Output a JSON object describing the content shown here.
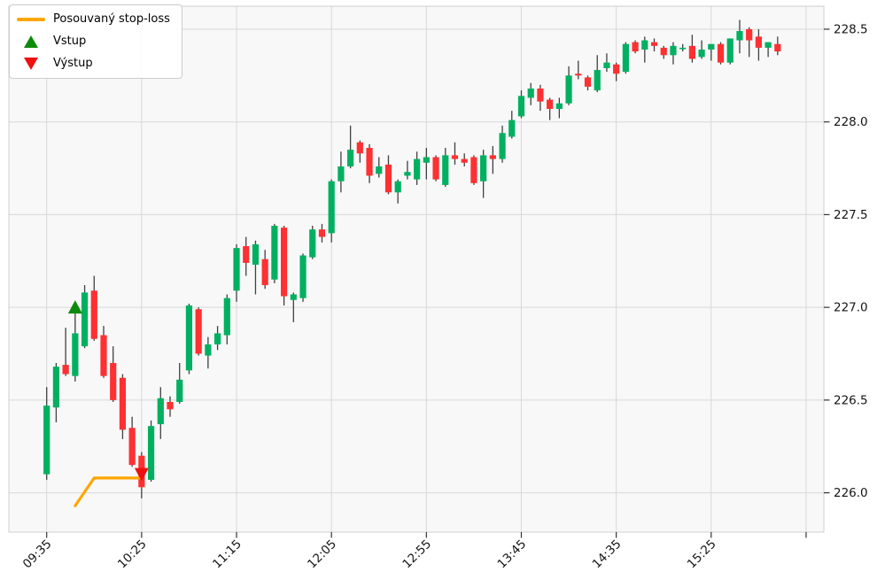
{
  "chart_data": {
    "type": "candlestick",
    "title": "",
    "xlabel": "",
    "ylabel": "",
    "grid": true,
    "legend_position": "upper-left",
    "interval_minutes": 5,
    "y_ticks": [
      226.0,
      226.5,
      227.0,
      227.5,
      228.0,
      228.5
    ],
    "ylim": [
      225.788,
      228.624
    ],
    "x_ticks": [
      {
        "i": 0,
        "label": "09:35"
      },
      {
        "i": 10,
        "label": "10:25"
      },
      {
        "i": 20,
        "label": "11:15"
      },
      {
        "i": 30,
        "label": "12:05"
      },
      {
        "i": 40,
        "label": "12:55"
      },
      {
        "i": 50,
        "label": "13:45"
      },
      {
        "i": 60,
        "label": "14:35"
      },
      {
        "i": 70,
        "label": "15:25"
      },
      {
        "i": 80,
        "label": ""
      }
    ],
    "candles": [
      [
        "09:35",
        226.1,
        226.57,
        226.07,
        226.47
      ],
      [
        "09:40",
        226.46,
        226.7,
        226.38,
        226.68
      ],
      [
        "09:45",
        226.69,
        226.89,
        226.63,
        226.64
      ],
      [
        "09:50",
        226.63,
        227.02,
        226.6,
        226.86
      ],
      [
        "09:55",
        226.79,
        227.12,
        226.78,
        227.08
      ],
      [
        "10:00",
        227.09,
        227.17,
        226.82,
        226.83
      ],
      [
        "10:05",
        226.85,
        226.9,
        226.62,
        226.63
      ],
      [
        "10:10",
        226.7,
        226.79,
        226.49,
        226.5
      ],
      [
        "10:15",
        226.62,
        226.64,
        226.29,
        226.34
      ],
      [
        "10:20",
        226.35,
        226.41,
        226.14,
        226.15
      ],
      [
        "10:25",
        226.2,
        226.22,
        225.97,
        226.03
      ],
      [
        "10:30",
        226.07,
        226.39,
        226.06,
        226.36
      ],
      [
        "10:35",
        226.37,
        226.57,
        226.29,
        226.51
      ],
      [
        "10:40",
        226.49,
        226.52,
        226.41,
        226.45
      ],
      [
        "10:45",
        226.49,
        226.7,
        226.48,
        226.61
      ],
      [
        "10:50",
        226.66,
        227.02,
        226.64,
        227.01
      ],
      [
        "10:55",
        226.99,
        227.0,
        226.74,
        226.75
      ],
      [
        "11:00",
        226.74,
        226.84,
        226.67,
        226.8
      ],
      [
        "11:05",
        226.8,
        226.9,
        226.77,
        226.86
      ],
      [
        "11:10",
        226.85,
        227.07,
        226.8,
        227.05
      ],
      [
        "11:15",
        227.09,
        227.34,
        227.03,
        227.32
      ],
      [
        "11:20",
        227.33,
        227.38,
        227.17,
        227.24
      ],
      [
        "11:25",
        227.23,
        227.36,
        227.07,
        227.34
      ],
      [
        "11:30",
        227.26,
        227.31,
        227.1,
        227.12
      ],
      [
        "11:35",
        227.15,
        227.45,
        227.13,
        227.44
      ],
      [
        "11:40",
        227.43,
        227.44,
        227.01,
        227.06
      ],
      [
        "11:45",
        227.04,
        227.08,
        226.92,
        227.07
      ],
      [
        "11:50",
        227.05,
        227.29,
        227.03,
        227.28
      ],
      [
        "11:55",
        227.27,
        227.44,
        227.26,
        227.42
      ],
      [
        "12:00",
        227.42,
        227.45,
        227.35,
        227.38
      ],
      [
        "12:05",
        227.4,
        227.69,
        227.35,
        227.68
      ],
      [
        "12:10",
        227.68,
        227.84,
        227.62,
        227.76
      ],
      [
        "12:15",
        227.76,
        227.98,
        227.75,
        227.85
      ],
      [
        "12:20",
        227.89,
        227.9,
        227.78,
        227.83
      ],
      [
        "12:25",
        227.86,
        227.88,
        227.67,
        227.71
      ],
      [
        "12:30",
        227.72,
        227.81,
        227.7,
        227.76
      ],
      [
        "12:35",
        227.77,
        227.82,
        227.61,
        227.62
      ],
      [
        "12:40",
        227.62,
        227.69,
        227.56,
        227.68
      ],
      [
        "12:45",
        227.71,
        227.79,
        227.69,
        227.73
      ],
      [
        "12:50",
        227.69,
        227.84,
        227.66,
        227.8
      ],
      [
        "12:55",
        227.78,
        227.86,
        227.69,
        227.81
      ],
      [
        "13:00",
        227.81,
        227.82,
        227.68,
        227.69
      ],
      [
        "13:05",
        227.66,
        227.86,
        227.65,
        227.82
      ],
      [
        "13:10",
        227.82,
        227.89,
        227.77,
        227.8
      ],
      [
        "13:15",
        227.8,
        227.83,
        227.76,
        227.78
      ],
      [
        "13:20",
        227.81,
        227.82,
        227.66,
        227.67
      ],
      [
        "13:25",
        227.68,
        227.85,
        227.59,
        227.82
      ],
      [
        "13:30",
        227.82,
        227.87,
        227.72,
        227.8
      ],
      [
        "13:35",
        227.8,
        227.98,
        227.78,
        227.94
      ],
      [
        "13:40",
        227.92,
        228.06,
        227.91,
        228.01
      ],
      [
        "13:45",
        228.03,
        228.17,
        228.02,
        228.14
      ],
      [
        "13:50",
        228.13,
        228.21,
        228.09,
        228.18
      ],
      [
        "13:55",
        228.18,
        228.2,
        228.06,
        228.11
      ],
      [
        "14:00",
        228.12,
        228.13,
        228.01,
        228.07
      ],
      [
        "14:05",
        228.07,
        228.13,
        228.02,
        228.1
      ],
      [
        "14:10",
        228.1,
        228.3,
        228.09,
        228.25
      ],
      [
        "14:15",
        228.26,
        228.33,
        228.23,
        228.25
      ],
      [
        "14:20",
        228.24,
        228.25,
        228.17,
        228.19
      ],
      [
        "14:25",
        228.17,
        228.36,
        228.16,
        228.28
      ],
      [
        "14:30",
        228.29,
        228.37,
        228.27,
        228.32
      ],
      [
        "14:35",
        228.31,
        228.32,
        228.22,
        228.26
      ],
      [
        "14:40",
        228.27,
        228.43,
        228.26,
        228.42
      ],
      [
        "14:45",
        228.43,
        228.44,
        228.37,
        228.38
      ],
      [
        "14:50",
        228.39,
        228.46,
        228.32,
        228.44
      ],
      [
        "14:55",
        228.43,
        228.45,
        228.38,
        228.41
      ],
      [
        "15:00",
        228.4,
        228.41,
        228.34,
        228.36
      ],
      [
        "15:05",
        228.36,
        228.43,
        228.31,
        228.41
      ],
      [
        "15:10",
        228.4,
        228.42,
        228.38,
        228.4
      ],
      [
        "15:15",
        228.41,
        228.47,
        228.32,
        228.34
      ],
      [
        "15:20",
        228.35,
        228.44,
        228.34,
        228.39
      ],
      [
        "15:25",
        228.39,
        228.42,
        228.33,
        228.42
      ],
      [
        "15:30",
        228.42,
        228.43,
        228.31,
        228.32
      ],
      [
        "15:35",
        228.32,
        228.45,
        228.31,
        228.45
      ],
      [
        "15:40",
        228.44,
        228.55,
        228.37,
        228.49
      ],
      [
        "15:45",
        228.5,
        228.51,
        228.35,
        228.44
      ],
      [
        "15:50",
        228.46,
        228.5,
        228.33,
        228.4
      ],
      [
        "15:55",
        228.4,
        228.43,
        228.35,
        228.43
      ],
      [
        "16:00",
        228.42,
        228.46,
        228.36,
        228.38
      ]
    ],
    "stop_loss_line": {
      "label": "Posouvaný stop-loss",
      "color": "#FFA500",
      "points": [
        {
          "time": "09:50",
          "price": 225.93
        },
        {
          "time": "10:00",
          "price": 226.08
        },
        {
          "time": "10:25",
          "price": 226.08
        }
      ]
    },
    "markers": {
      "entry": {
        "label": "Vstup",
        "shape": "triangle-up",
        "color": "#0c8a0c",
        "time": "09:50",
        "price": 227.0
      },
      "exit": {
        "label": "Výstup",
        "shape": "triangle-down",
        "color": "#ef1010",
        "time": "10:25",
        "price": 226.1
      }
    },
    "colors": {
      "up": "#00b060",
      "down": "#fe3032",
      "wick": "#404040",
      "grid": "#d8d8d8",
      "plot_background": "#f8f8f8",
      "figure_background": "#ffffff",
      "spine": "#cfcfcf",
      "tick_text": "#141414"
    }
  },
  "legend": {
    "items": [
      {
        "label": "Posouvaný stop-loss",
        "swatch": "line",
        "color": "#FFA500"
      },
      {
        "label": "Vstup",
        "swatch": "triangle-up",
        "color": "#0c8a0c"
      },
      {
        "label": "Výstup",
        "swatch": "triangle-down",
        "color": "#ef1010"
      }
    ]
  }
}
